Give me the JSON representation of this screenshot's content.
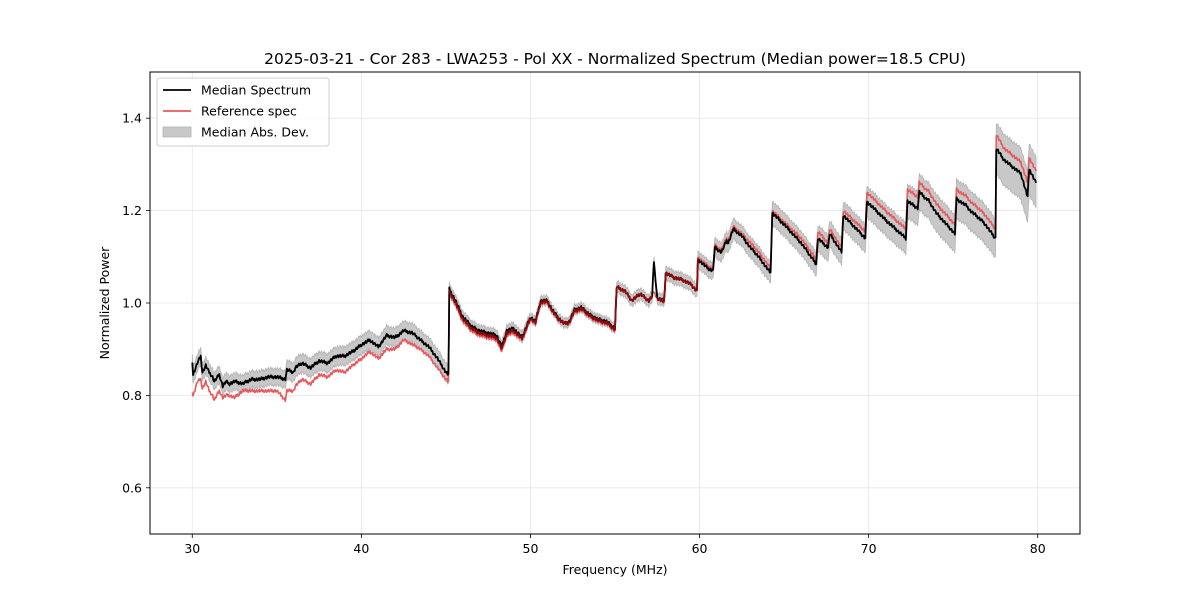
{
  "chart_data": {
    "type": "line",
    "title": "2025-03-21 - Cor 283 - LWA253 - Pol XX - Normalized Spectrum (Median power=18.5 CPU)",
    "xlabel": "Frequency (MHz)",
    "ylabel": "Normalized Power",
    "xlim": [
      27.5,
      82.5
    ],
    "ylim": [
      0.5,
      1.5
    ],
    "grid": true,
    "legend_position": "top-left",
    "xticks": [
      30,
      40,
      50,
      60,
      70,
      80
    ],
    "xtick_labels": [
      "30",
      "40",
      "50",
      "60",
      "70",
      "80"
    ],
    "yticks": [
      0.6,
      0.8,
      1.0,
      1.2,
      1.4
    ],
    "ytick_labels": [
      "0.6",
      "0.8",
      "1.0",
      "1.2",
      "1.4"
    ],
    "legend": [
      {
        "label": "Median Spectrum",
        "kind": "line",
        "color": "#000000"
      },
      {
        "label": "Reference spec",
        "kind": "line",
        "color": "#e8585c"
      },
      {
        "label": "Median Abs. Dev.",
        "kind": "band",
        "color": "#c8c8c8"
      }
    ],
    "x": [
      30.0,
      30.05,
      30.3,
      30.5,
      30.6,
      30.8,
      31.0,
      31.2,
      31.3,
      31.6,
      31.8,
      32.0,
      32.2,
      32.5,
      33.0,
      33.5,
      34.0,
      34.5,
      35.0,
      35.5,
      35.6,
      36.0,
      36.1,
      36.5,
      37.0,
      37.5,
      38.0,
      38.5,
      39.0,
      39.5,
      40.0,
      40.5,
      41.0,
      41.5,
      42.0,
      42.5,
      43.0,
      43.5,
      44.0,
      44.5,
      45.0,
      45.15,
      45.2,
      45.5,
      46.0,
      46.5,
      47.0,
      47.5,
      48.0,
      48.3,
      48.6,
      49.0,
      49.5,
      50.0,
      50.3,
      50.6,
      51.0,
      51.3,
      51.6,
      52.0,
      52.3,
      52.6,
      53.0,
      53.5,
      54.0,
      54.5,
      55.0,
      55.1,
      55.6,
      56.0,
      56.5,
      57.0,
      57.2,
      57.3,
      57.5,
      57.9,
      58.0,
      58.5,
      59.0,
      59.5,
      59.85,
      59.9,
      60.5,
      60.8,
      60.9,
      61.3,
      61.6,
      61.7,
      62.0,
      62.5,
      63.0,
      63.5,
      64.2,
      64.3,
      65.0,
      66.0,
      66.9,
      67.0,
      67.6,
      67.7,
      68.4,
      68.5,
      69.8,
      69.9,
      71.0,
      72.2,
      72.3,
      72.9,
      73.0,
      73.4,
      73.5,
      74.0,
      75.1,
      75.2,
      75.8,
      76.0,
      76.8,
      77.5,
      77.55,
      78.0,
      79.0,
      79.4,
      79.5,
      79.9
    ],
    "series": [
      {
        "name": "Median Spectrum",
        "color": "#000000",
        "values": [
          0.875,
          0.845,
          0.87,
          0.885,
          0.85,
          0.865,
          0.85,
          0.84,
          0.83,
          0.845,
          0.82,
          0.83,
          0.825,
          0.83,
          0.825,
          0.835,
          0.835,
          0.84,
          0.84,
          0.835,
          0.855,
          0.85,
          0.86,
          0.87,
          0.86,
          0.875,
          0.87,
          0.885,
          0.885,
          0.895,
          0.91,
          0.92,
          0.905,
          0.93,
          0.925,
          0.94,
          0.935,
          0.92,
          0.905,
          0.88,
          0.85,
          0.845,
          1.03,
          1.01,
          0.97,
          0.95,
          0.94,
          0.935,
          0.93,
          0.905,
          0.94,
          0.945,
          0.925,
          0.97,
          0.96,
          1.005,
          1.005,
          0.985,
          0.97,
          0.955,
          0.96,
          0.985,
          0.99,
          0.975,
          0.965,
          0.96,
          0.945,
          1.035,
          1.025,
          1.005,
          1.02,
          1.005,
          1.015,
          1.09,
          1.01,
          1.005,
          1.065,
          1.055,
          1.05,
          1.04,
          1.025,
          1.095,
          1.075,
          1.07,
          1.12,
          1.11,
          1.135,
          1.13,
          1.16,
          1.145,
          1.12,
          1.1,
          1.065,
          1.195,
          1.17,
          1.13,
          1.085,
          1.14,
          1.12,
          1.15,
          1.11,
          1.19,
          1.14,
          1.22,
          1.18,
          1.14,
          1.22,
          1.205,
          1.24,
          1.225,
          1.225,
          1.195,
          1.15,
          1.225,
          1.21,
          1.2,
          1.175,
          1.14,
          1.335,
          1.31,
          1.28,
          1.23,
          1.29,
          1.26
        ]
      },
      {
        "name": "Reference spec",
        "color": "#e8585c",
        "values": [
          0.81,
          0.8,
          0.83,
          0.835,
          0.815,
          0.83,
          0.81,
          0.8,
          0.79,
          0.81,
          0.795,
          0.8,
          0.8,
          0.795,
          0.81,
          0.81,
          0.81,
          0.81,
          0.81,
          0.79,
          0.81,
          0.81,
          0.82,
          0.835,
          0.825,
          0.845,
          0.84,
          0.855,
          0.85,
          0.865,
          0.88,
          0.895,
          0.88,
          0.9,
          0.9,
          0.92,
          0.91,
          0.9,
          0.885,
          0.86,
          0.835,
          0.83,
          1.02,
          1.0,
          0.96,
          0.94,
          0.93,
          0.925,
          0.92,
          0.895,
          0.93,
          0.935,
          0.92,
          0.965,
          0.955,
          1.0,
          1.0,
          0.98,
          0.965,
          0.955,
          0.955,
          0.98,
          0.985,
          0.97,
          0.96,
          0.955,
          0.94,
          1.035,
          1.025,
          1.005,
          1.02,
          1.005,
          1.015,
          1.025,
          1.01,
          1.0,
          1.065,
          1.055,
          1.05,
          1.04,
          1.025,
          1.1,
          1.08,
          1.075,
          1.125,
          1.115,
          1.14,
          1.135,
          1.165,
          1.15,
          1.13,
          1.11,
          1.075,
          1.2,
          1.175,
          1.14,
          1.095,
          1.155,
          1.13,
          1.16,
          1.12,
          1.2,
          1.155,
          1.24,
          1.2,
          1.16,
          1.245,
          1.23,
          1.26,
          1.245,
          1.245,
          1.215,
          1.17,
          1.245,
          1.23,
          1.22,
          1.195,
          1.16,
          1.365,
          1.335,
          1.305,
          1.26,
          1.315,
          1.285
        ]
      }
    ],
    "band": {
      "name": "Median Abs. Dev.",
      "color": "#c8c8c8",
      "around": "Median Spectrum",
      "halfwidth": [
        0.018,
        0.018,
        0.018,
        0.018,
        0.018,
        0.018,
        0.018,
        0.018,
        0.018,
        0.018,
        0.018,
        0.018,
        0.018,
        0.018,
        0.018,
        0.018,
        0.018,
        0.018,
        0.018,
        0.018,
        0.02,
        0.02,
        0.02,
        0.02,
        0.02,
        0.02,
        0.02,
        0.02,
        0.02,
        0.02,
        0.02,
        0.02,
        0.02,
        0.02,
        0.02,
        0.02,
        0.02,
        0.02,
        0.02,
        0.02,
        0.02,
        0.02,
        0.012,
        0.012,
        0.012,
        0.012,
        0.012,
        0.012,
        0.012,
        0.012,
        0.012,
        0.012,
        0.012,
        0.01,
        0.01,
        0.01,
        0.01,
        0.01,
        0.01,
        0.01,
        0.01,
        0.01,
        0.01,
        0.01,
        0.01,
        0.01,
        0.01,
        0.012,
        0.012,
        0.012,
        0.012,
        0.012,
        0.012,
        0.012,
        0.012,
        0.012,
        0.014,
        0.014,
        0.014,
        0.014,
        0.014,
        0.018,
        0.018,
        0.018,
        0.02,
        0.02,
        0.02,
        0.02,
        0.022,
        0.022,
        0.022,
        0.022,
        0.022,
        0.025,
        0.025,
        0.025,
        0.025,
        0.028,
        0.028,
        0.028,
        0.028,
        0.03,
        0.03,
        0.033,
        0.033,
        0.033,
        0.036,
        0.036,
        0.038,
        0.038,
        0.038,
        0.04,
        0.04,
        0.042,
        0.042,
        0.042,
        0.042,
        0.042,
        0.055,
        0.055,
        0.055,
        0.055,
        0.055,
        0.055
      ]
    }
  }
}
